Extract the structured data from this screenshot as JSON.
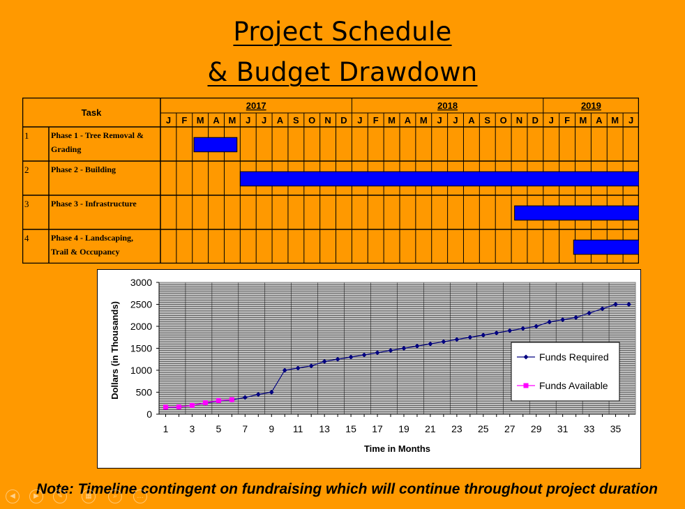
{
  "slide": {
    "title_line1": "Project Schedule",
    "title_line2": "& Budget Drawdown",
    "note": "Note: Timeline contingent on fundraising which will continue throughout project duration"
  },
  "gantt": {
    "task_header": "Task",
    "years": [
      {
        "label": "2017",
        "months": 12
      },
      {
        "label": "2018",
        "months": 12
      },
      {
        "label": "2019",
        "months": 6
      }
    ],
    "months": [
      "J",
      "F",
      "M",
      "A",
      "M",
      "J",
      "J",
      "A",
      "S",
      "O",
      "N",
      "D",
      "J",
      "F",
      "M",
      "A",
      "M",
      "J",
      "J",
      "A",
      "S",
      "O",
      "N",
      "D",
      "J",
      "F",
      "M",
      "A",
      "M",
      "J"
    ],
    "tasks": [
      {
        "num": "1",
        "name_lines": [
          "Phase 1 - Tree Removal &",
          "Grading"
        ],
        "start_month": 2.1,
        "end_month": 4.8
      },
      {
        "num": "2",
        "name_lines": [
          "Phase 2 - Building"
        ],
        "start_month": 5.0,
        "end_month": 30.0
      },
      {
        "num": "3",
        "name_lines": [
          "Phase 3   - Infrastructure"
        ],
        "start_month": 22.2,
        "end_month": 30.0
      },
      {
        "num": "4",
        "name_lines": [
          "Phase 4 - Landscaping,",
          "Trail & Occupancy"
        ],
        "start_month": 25.9,
        "end_month": 30.0
      }
    ],
    "bar_color": "#0000FF"
  },
  "chart_data": {
    "type": "line",
    "xlabel": "Time in Months",
    "ylabel": "Dollars (in Thousands)",
    "xlim": [
      0.5,
      36.5
    ],
    "ylim": [
      0,
      3000
    ],
    "yticks": [
      0,
      500,
      1000,
      1500,
      2000,
      2500,
      3000
    ],
    "xticks": [
      1,
      3,
      5,
      7,
      9,
      11,
      13,
      15,
      17,
      19,
      21,
      23,
      25,
      27,
      29,
      31,
      33,
      35
    ],
    "grid": true,
    "legend_position": "right",
    "series": [
      {
        "name": "Funds Required",
        "color": "#000080",
        "marker": "diamond",
        "x": [
          1,
          2,
          3,
          4,
          5,
          6,
          7,
          8,
          9,
          10,
          11,
          12,
          13,
          14,
          15,
          16,
          17,
          18,
          19,
          20,
          21,
          22,
          23,
          24,
          25,
          26,
          27,
          28,
          29,
          30,
          31,
          32,
          33,
          34,
          35,
          36
        ],
        "y": [
          150,
          160,
          200,
          250,
          300,
          325,
          380,
          450,
          500,
          1000,
          1050,
          1100,
          1200,
          1250,
          1300,
          1350,
          1400,
          1450,
          1500,
          1550,
          1600,
          1650,
          1700,
          1750,
          1800,
          1850,
          1900,
          1950,
          2000,
          2100,
          2150,
          2200,
          2300,
          2400,
          2500,
          2500
        ]
      },
      {
        "name": "Funds Available",
        "color": "#FF00FF",
        "marker": "square",
        "x": [
          1,
          2,
          3,
          4,
          5,
          6
        ],
        "y": [
          160,
          165,
          200,
          260,
          310,
          330
        ]
      }
    ]
  }
}
